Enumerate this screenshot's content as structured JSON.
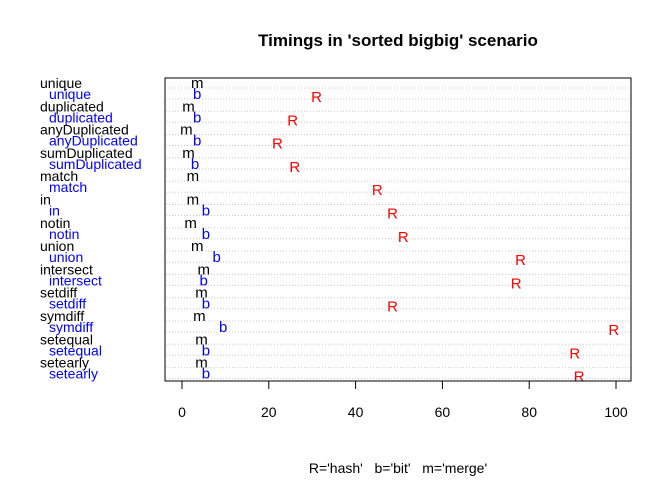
{
  "chart_data": {
    "type": "scatter",
    "title": "Timings in 'sorted bigbig' scenario",
    "xlabel": "R='hash'   b='bit'   m='merge'",
    "ylabel": "",
    "xlim": [
      -4,
      104
    ],
    "xticks": [
      0,
      20,
      40,
      60,
      80,
      100
    ],
    "grid": "dotted horizontal",
    "colors": {
      "k": "#000000",
      "b": "#0000ff",
      "R": "#ff0000"
    },
    "categories": [
      "unique",
      "duplicated",
      "anyDuplicated",
      "sumDuplicated",
      "match",
      "in",
      "notin",
      "union",
      "intersect",
      "setdiff",
      "symdiff",
      "setequal",
      "setearly"
    ],
    "series": [
      {
        "symbol": "m",
        "color": "#000000",
        "values": [
          3.5,
          1.5,
          1.0,
          1.5,
          2.5,
          2.5,
          2.0,
          3.5,
          5.0,
          4.5,
          4.0,
          4.5,
          4.5
        ]
      },
      {
        "symbol": "b",
        "color": "#0000ff",
        "values": [
          3.5,
          3.5,
          3.5,
          3.0,
          null,
          5.5,
          5.5,
          8.0,
          5.0,
          5.5,
          9.5,
          5.5,
          5.5
        ]
      },
      {
        "symbol": "R",
        "color": "#ff0000",
        "values": [
          31.0,
          25.5,
          22.0,
          26.0,
          45.0,
          48.5,
          51.0,
          78.0,
          77.0,
          48.5,
          99.5,
          90.5,
          91.5
        ]
      }
    ]
  }
}
